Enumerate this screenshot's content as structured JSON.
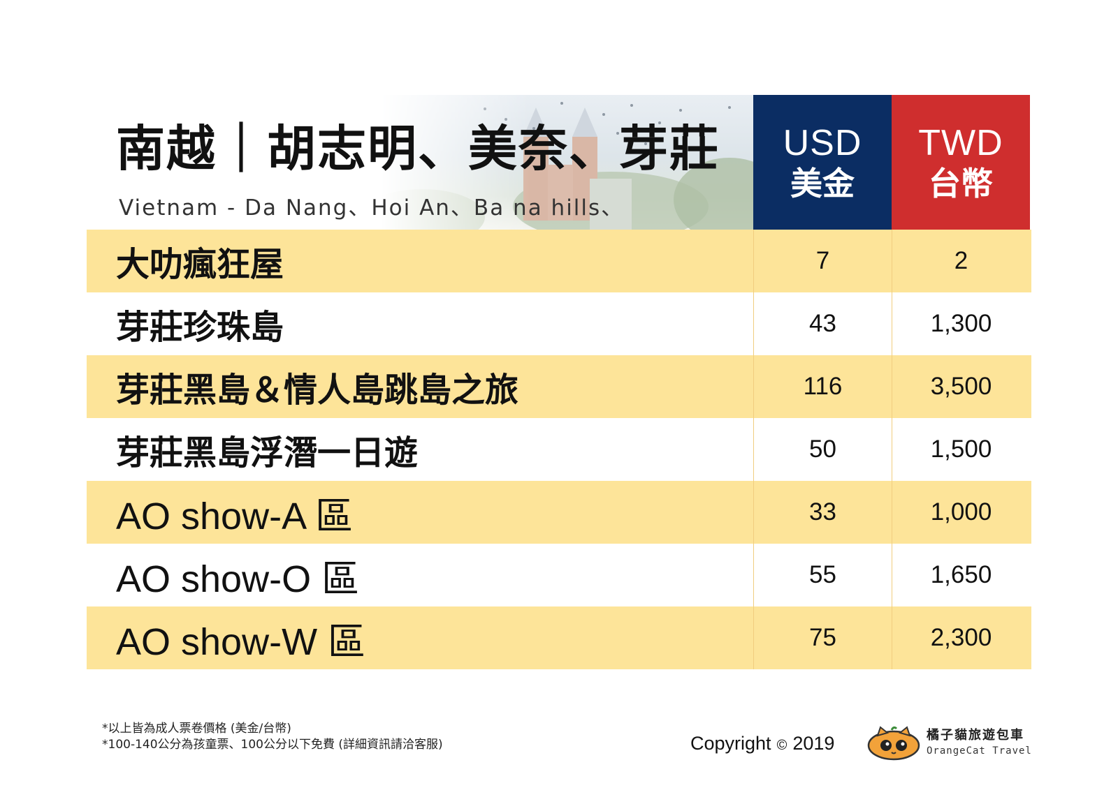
{
  "header": {
    "title": "南越｜胡志明、美奈、芽莊",
    "subtitle": "Vietnam - Da Nang、Hoi An、Ba na hills、",
    "usd_code": "USD",
    "usd_name": "美金",
    "twd_code": "TWD",
    "twd_name": "台幣",
    "usd_color": "#0b2d63",
    "twd_color": "#cf2e2e",
    "stripe_color": "#fde499"
  },
  "rows": [
    {
      "name": "大叻瘋狂屋",
      "usd": "7",
      "twd": "2"
    },
    {
      "name": "芽莊珍珠島",
      "usd": "43",
      "twd": "1,300"
    },
    {
      "name": "芽莊黑島＆情人島跳島之旅",
      "usd": "116",
      "twd": "3,500"
    },
    {
      "name": "芽莊黑島浮潛一日遊",
      "usd": "50",
      "twd": "1,500"
    },
    {
      "name": "AO show-A 區",
      "usd": "33",
      "twd": "1,000"
    },
    {
      "name": "AO show-O 區",
      "usd": "55",
      "twd": "1,650"
    },
    {
      "name": "AO show-W 區",
      "usd": "75",
      "twd": "2,300"
    }
  ],
  "footer": {
    "note1": "*以上皆為成人票卷價格 (美金/台幣)",
    "note2": "*100-140公分為孩童票、100公分以下免費 (詳細資訊請洽客服)",
    "copyright_label": "Copyright",
    "copyright_symbol": "©",
    "copyright_year": "2019",
    "brand_cn": "橘子貓旅遊包車",
    "brand_en": "OrangeCat Travel",
    "brand_icon": "orange-cat-icon"
  }
}
